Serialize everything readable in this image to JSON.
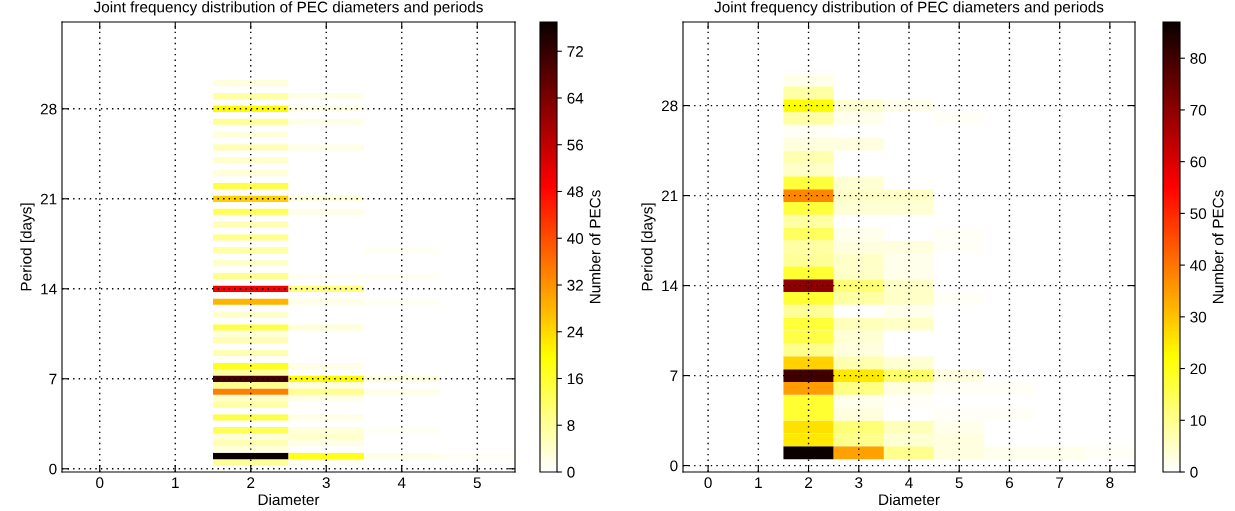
{
  "chart_data": [
    {
      "type": "heatmap",
      "title": "Joint frequency distribution of PEC diameters and periods",
      "xlabel": "Diameter",
      "ylabel": "Period [days]",
      "clabel": "Number of PECs",
      "grid": true,
      "categories": [
        "0",
        "1",
        "2",
        "3",
        "4",
        "5"
      ],
      "y_categories": [
        null,
        null,
        null,
        null,
        null,
        null,
        null,
        null,
        null,
        null,
        null,
        null,
        null,
        "28",
        null,
        null,
        null,
        null,
        null,
        null,
        null,
        null,
        null,
        null,
        null,
        null,
        null,
        "21",
        null,
        null,
        null,
        null,
        null,
        null,
        null,
        null,
        null,
        null,
        null,
        null,
        null,
        "14",
        null,
        null,
        null,
        null,
        null,
        null,
        null,
        null,
        null,
        null,
        null,
        null,
        null,
        "7",
        null,
        null,
        null,
        null,
        null,
        null,
        null,
        null,
        null,
        null,
        null,
        null,
        null,
        "0"
      ],
      "clim": [
        0,
        77
      ],
      "cticks": [
        0,
        8,
        16,
        24,
        32,
        40,
        48,
        56,
        64,
        72
      ],
      "cells": [
        [
          0,
          0,
          0,
          0,
          0,
          0
        ],
        [
          0,
          0,
          0,
          0,
          0,
          0
        ],
        [
          0,
          0,
          0,
          0,
          0,
          0
        ],
        [
          0,
          0,
          0,
          0,
          0,
          0
        ],
        [
          0,
          0,
          0,
          0,
          0,
          0
        ],
        [
          0,
          0,
          0,
          0,
          0,
          0
        ],
        [
          0,
          0,
          0,
          0,
          0,
          0
        ],
        [
          0,
          0,
          0,
          0,
          0,
          0
        ],
        [
          0,
          0,
          0,
          0,
          0,
          0
        ],
        [
          0,
          0,
          3,
          0,
          0,
          0
        ],
        [
          0,
          0,
          0,
          0,
          0,
          0
        ],
        [
          0,
          0,
          7,
          2,
          0,
          0
        ],
        [
          0,
          0,
          0,
          0,
          0,
          0
        ],
        [
          0,
          0,
          20,
          2,
          0,
          0
        ],
        [
          0,
          0,
          0,
          0,
          0,
          0
        ],
        [
          0,
          0,
          8,
          2,
          0,
          0
        ],
        [
          0,
          0,
          0,
          0,
          0,
          0
        ],
        [
          0,
          0,
          3,
          0,
          0,
          0
        ],
        [
          0,
          0,
          0,
          0,
          0,
          0
        ],
        [
          0,
          0,
          6,
          2,
          0,
          0
        ],
        [
          0,
          0,
          0,
          0,
          0,
          0
        ],
        [
          0,
          0,
          4,
          0,
          0,
          0
        ],
        [
          0,
          0,
          0,
          0,
          0,
          0
        ],
        [
          0,
          0,
          3,
          0,
          0,
          0
        ],
        [
          0,
          0,
          0,
          0,
          0,
          0
        ],
        [
          0,
          0,
          14,
          0,
          0,
          0
        ],
        [
          0,
          0,
          0,
          0,
          0,
          0
        ],
        [
          0,
          0,
          25,
          3,
          0,
          0
        ],
        [
          0,
          0,
          0,
          0,
          0,
          0
        ],
        [
          0,
          0,
          13,
          2,
          0,
          0
        ],
        [
          0,
          0,
          0,
          0,
          0,
          0
        ],
        [
          0,
          0,
          6,
          0,
          0,
          0
        ],
        [
          0,
          0,
          0,
          0,
          0,
          0
        ],
        [
          0,
          0,
          9,
          0,
          0,
          0
        ],
        [
          0,
          0,
          0,
          0,
          0,
          0
        ],
        [
          0,
          0,
          7,
          0,
          1,
          0
        ],
        [
          0,
          0,
          0,
          0,
          0,
          0
        ],
        [
          0,
          0,
          4,
          0,
          0,
          0
        ],
        [
          0,
          0,
          0,
          0,
          0,
          0
        ],
        [
          0,
          0,
          9,
          1,
          1,
          0
        ],
        [
          0,
          0,
          0,
          0,
          0,
          0
        ],
        [
          0,
          0,
          50,
          10,
          0,
          0
        ],
        [
          0,
          0,
          0,
          0,
          0,
          0
        ],
        [
          0,
          0,
          28,
          2,
          1,
          0
        ],
        [
          0,
          0,
          0,
          0,
          0,
          0
        ],
        [
          0,
          0,
          4,
          0,
          0,
          0
        ],
        [
          0,
          0,
          0,
          0,
          0,
          0
        ],
        [
          0,
          0,
          14,
          3,
          0,
          0
        ],
        [
          0,
          0,
          3,
          0,
          0,
          0
        ],
        [
          0,
          0,
          6,
          0,
          0,
          0
        ],
        [
          0,
          0,
          0,
          0,
          0,
          0
        ],
        [
          0,
          0,
          6,
          0,
          0,
          0
        ],
        [
          0,
          0,
          0,
          0,
          0,
          0
        ],
        [
          0,
          0,
          17,
          2,
          0,
          0
        ],
        [
          0,
          0,
          7,
          0,
          0,
          0
        ],
        [
          0,
          0,
          70,
          20,
          3,
          0
        ],
        [
          0,
          0,
          9,
          3,
          0,
          0
        ],
        [
          0,
          0,
          34,
          9,
          2,
          0
        ],
        [
          0,
          0,
          4,
          2,
          0,
          0
        ],
        [
          0,
          0,
          7,
          0,
          0,
          0
        ],
        [
          0,
          0,
          0,
          0,
          0,
          0
        ],
        [
          0,
          0,
          14,
          2,
          0,
          0
        ],
        [
          0,
          0,
          0,
          0,
          0,
          0
        ],
        [
          0,
          0,
          13,
          3,
          1,
          0
        ],
        [
          0,
          0,
          3,
          4,
          0,
          0
        ],
        [
          0,
          0,
          6,
          2,
          0,
          0
        ],
        [
          0,
          0,
          3,
          0,
          0,
          0
        ],
        [
          0,
          0,
          77,
          18,
          2,
          1
        ],
        [
          0,
          0,
          8,
          1,
          0,
          0
        ],
        [
          0,
          0,
          0,
          0,
          0,
          0
        ]
      ]
    },
    {
      "type": "heatmap",
      "title": "Joint frequency distribution of PEC diameters and periods",
      "xlabel": "Diameter",
      "ylabel": "Period [days]",
      "clabel": "Number of PECs",
      "grid": true,
      "categories": [
        "0",
        "1",
        "2",
        "3",
        "4",
        "5",
        "6",
        "7",
        "8"
      ],
      "y_categories": [
        null,
        null,
        null,
        null,
        null,
        null,
        "28",
        null,
        null,
        null,
        null,
        null,
        null,
        "21",
        null,
        null,
        null,
        null,
        null,
        null,
        "14",
        null,
        null,
        null,
        null,
        null,
        null,
        "7",
        null,
        null,
        null,
        null,
        null,
        null,
        "0"
      ],
      "clim": [
        0,
        87
      ],
      "cticks": [
        0,
        10,
        20,
        30,
        40,
        50,
        60,
        70,
        80
      ],
      "cells": [
        [
          0,
          0,
          0,
          0,
          0,
          0,
          0,
          0,
          0
        ],
        [
          0,
          0,
          0,
          0,
          0,
          0,
          0,
          0,
          0
        ],
        [
          0,
          0,
          0,
          0,
          0,
          0,
          0,
          0,
          0
        ],
        [
          0,
          0,
          0,
          0,
          0,
          0,
          0,
          0,
          0
        ],
        [
          0,
          0,
          2,
          0,
          0,
          0,
          0,
          0,
          0
        ],
        [
          0,
          0,
          8,
          0,
          0,
          0,
          0,
          0,
          0
        ],
        [
          0,
          0,
          22,
          4,
          2,
          0,
          0,
          0,
          0
        ],
        [
          0,
          0,
          8,
          2,
          0,
          1,
          0,
          0,
          0
        ],
        [
          0,
          0,
          1,
          0,
          0,
          0,
          0,
          0,
          0
        ],
        [
          0,
          0,
          3,
          3,
          0,
          0,
          0,
          0,
          0
        ],
        [
          0,
          0,
          7,
          0,
          0,
          0,
          0,
          0,
          0
        ],
        [
          0,
          0,
          5,
          0,
          0,
          0,
          0,
          0,
          0
        ],
        [
          0,
          0,
          17,
          4,
          0,
          0,
          0,
          0,
          0
        ],
        [
          0,
          0,
          38,
          5,
          5,
          0,
          0,
          0,
          0
        ],
        [
          0,
          0,
          17,
          4,
          4,
          0,
          0,
          0,
          0
        ],
        [
          0,
          0,
          8,
          0,
          0,
          0,
          0,
          0,
          0
        ],
        [
          0,
          0,
          14,
          2,
          0,
          1,
          0,
          0,
          0
        ],
        [
          0,
          0,
          8,
          3,
          3,
          1,
          0,
          0,
          0
        ],
        [
          0,
          0,
          9,
          5,
          2,
          0,
          0,
          0,
          0
        ],
        [
          0,
          0,
          18,
          5,
          2,
          0,
          0,
          0,
          0
        ],
        [
          0,
          0,
          70,
          12,
          5,
          0,
          0,
          0,
          0
        ],
        [
          0,
          0,
          18,
          8,
          5,
          1,
          0,
          0,
          0
        ],
        [
          0,
          0,
          9,
          0,
          2,
          0,
          0,
          0,
          0
        ],
        [
          0,
          0,
          17,
          6,
          5,
          0,
          0,
          0,
          0
        ],
        [
          0,
          0,
          16,
          4,
          0,
          0,
          0,
          0,
          0
        ],
        [
          0,
          0,
          10,
          3,
          0,
          0,
          0,
          0,
          0
        ],
        [
          0,
          0,
          28,
          7,
          4,
          0,
          0,
          0,
          0
        ],
        [
          0,
          0,
          80,
          25,
          13,
          3,
          0,
          0,
          0
        ],
        [
          0,
          0,
          35,
          11,
          3,
          1,
          1,
          0,
          0
        ],
        [
          0,
          0,
          18,
          2,
          1,
          0,
          0,
          0,
          0
        ],
        [
          0,
          0,
          18,
          3,
          0,
          1,
          1,
          0,
          0
        ],
        [
          0,
          0,
          26,
          12,
          6,
          2,
          0,
          0,
          0
        ],
        [
          0,
          0,
          25,
          10,
          4,
          3,
          0,
          0,
          0
        ],
        [
          0,
          0,
          87,
          34,
          10,
          3,
          2,
          2,
          1
        ],
        [
          0,
          0,
          0,
          0,
          0,
          0,
          0,
          0,
          0
        ]
      ]
    }
  ]
}
